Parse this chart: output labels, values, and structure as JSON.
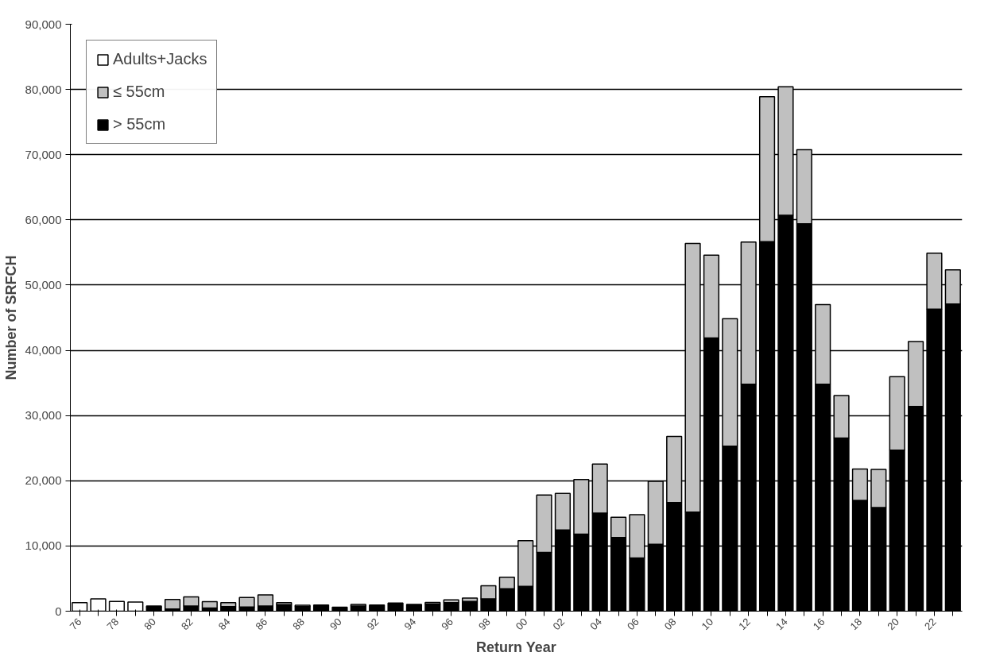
{
  "chart_data": {
    "type": "bar",
    "stacked": true,
    "xlabel": "Return Year",
    "ylabel": "Number of SRFCH",
    "categories": [
      "76",
      null,
      "78",
      null,
      "80",
      null,
      "82",
      null,
      "84",
      null,
      "86",
      null,
      "88",
      null,
      "90",
      null,
      "92",
      null,
      "94",
      null,
      "96",
      null,
      "98",
      null,
      "00",
      null,
      "02",
      null,
      "04",
      null,
      "06",
      null,
      "08",
      null,
      "10",
      null,
      "12",
      null,
      "14",
      null,
      "16",
      null,
      "18",
      null,
      "20",
      null,
      "22",
      null
    ],
    "series": [
      {
        "name": "> 55cm",
        "color": "#000000",
        "values": [
          null,
          null,
          null,
          null,
          600,
          350,
          800,
          500,
          700,
          650,
          800,
          1000,
          700,
          800,
          600,
          800,
          950,
          1250,
          1050,
          1100,
          1300,
          1500,
          1900,
          3450,
          3800,
          9000,
          12450,
          11800,
          15050,
          11300,
          8150,
          10250,
          16650,
          15200,
          41900,
          25300,
          34800,
          56650,
          60700,
          59400,
          34800,
          26550,
          17000,
          15900,
          24700,
          31400,
          46300,
          47100
        ]
      },
      {
        "name": "≤ 55cm",
        "color": "#c0c0c0",
        "values": [
          null,
          null,
          null,
          null,
          200,
          1450,
          1400,
          950,
          600,
          1450,
          1700,
          300,
          200,
          150,
          null,
          250,
          null,
          null,
          null,
          250,
          450,
          500,
          2000,
          1750,
          7000,
          8800,
          5600,
          8400,
          7500,
          3100,
          6650,
          9650,
          10150,
          41200,
          12700,
          19550,
          21800,
          22250,
          19700,
          11350,
          12200,
          6500,
          4800,
          5850,
          11250,
          9950,
          8600,
          5250
        ]
      },
      {
        "name": "Adults+Jacks",
        "color": "#ffffff",
        "values": [
          1300,
          1900,
          1500,
          1400,
          null,
          null,
          null,
          null,
          null,
          null,
          null,
          null,
          null,
          null,
          null,
          null,
          null,
          null,
          null,
          null,
          null,
          null,
          null,
          null,
          null,
          null,
          null,
          null,
          null,
          null,
          null,
          null,
          null,
          null,
          null,
          null,
          null,
          null,
          null,
          null,
          null,
          null,
          null,
          null,
          null,
          null,
          null,
          null
        ]
      }
    ],
    "ylim": [
      0,
      90000
    ],
    "yticks": [
      0,
      {
        "value": 10000,
        "label": "10,000"
      },
      {
        "value": 20000,
        "label": "20,000"
      },
      {
        "value": 30000,
        "label": "30,000"
      },
      {
        "value": 40000,
        "label": "40,000"
      },
      {
        "value": 50000,
        "label": "50,000"
      },
      {
        "value": 60000,
        "label": "60,000"
      },
      {
        "value": 70000,
        "label": "70,000"
      },
      {
        "value": 80000,
        "label": "80,000"
      },
      {
        "value": 90000,
        "label": "90,000"
      }
    ],
    "grid": "y",
    "legend": "top left"
  }
}
